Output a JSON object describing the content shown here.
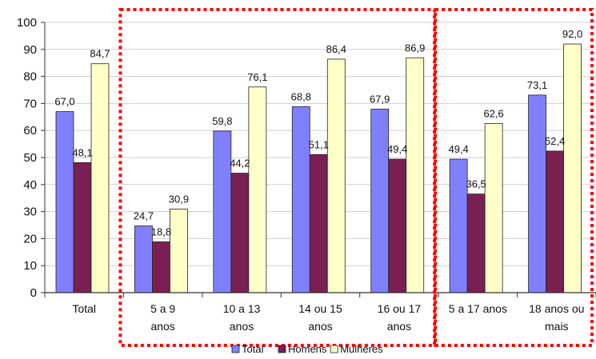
{
  "chart_data": {
    "type": "bar",
    "categories": [
      [
        "Total"
      ],
      [
        "5 a  9",
        "anos"
      ],
      [
        "10 a 13",
        "anos"
      ],
      [
        "14 ou 15",
        "anos"
      ],
      [
        "16 ou 17",
        "anos"
      ],
      [
        "5 a 17 anos"
      ],
      [
        "18 anos ou",
        "mais"
      ]
    ],
    "series": [
      {
        "name": "Total",
        "values": [
          67.0,
          24.7,
          59.8,
          68.8,
          67.9,
          49.4,
          73.1
        ],
        "labels": [
          "67,0",
          "24,7",
          "59,8",
          "68,8",
          "67,9",
          "49,4",
          "73,1"
        ]
      },
      {
        "name": "Homens",
        "values": [
          48.1,
          18.8,
          44.2,
          51.1,
          49.4,
          36.5,
          52.4
        ],
        "labels": [
          "48,1",
          "18,8",
          "44,2",
          "51,1",
          "49,4",
          "36,5",
          "52,4"
        ]
      },
      {
        "name": "Mulheres",
        "values": [
          84.7,
          30.9,
          76.1,
          86.4,
          86.9,
          62.6,
          92.0
        ],
        "labels": [
          "84,7",
          "30,9",
          "76,1",
          "86,4",
          "86,9",
          "62,6",
          "92,0"
        ]
      }
    ],
    "ylim": [
      0,
      100
    ],
    "yticks": [
      "0",
      "10",
      "20",
      "30",
      "40",
      "50",
      "60",
      "70",
      "80",
      "90",
      "100"
    ],
    "grid": true,
    "legend": "bottom",
    "colors": {
      "Total": "#8080ff",
      "Homens": "#7a1f52",
      "Mulheres": "#ffffc8",
      "highlight_box": "#ff0000"
    },
    "highlight_groups": [
      [
        1,
        4
      ],
      [
        5,
        6
      ]
    ]
  }
}
